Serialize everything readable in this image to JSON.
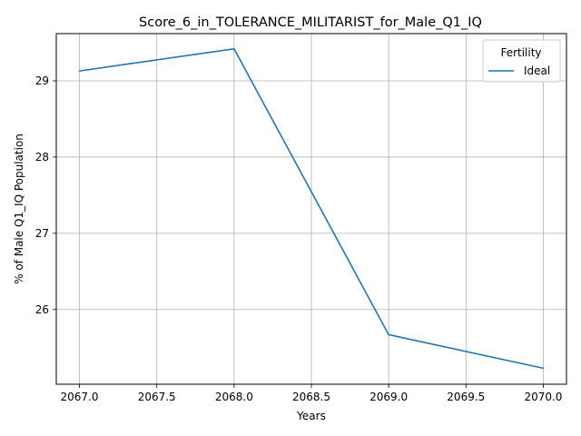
{
  "chart_data": {
    "type": "line",
    "title": "Score_6_in_TOLERANCE_MILITARIST_for_Male_Q1_IQ",
    "xlabel": "Years",
    "ylabel": "% of Male Q1_IQ Population",
    "x": [
      2067,
      2068,
      2069,
      2070
    ],
    "series": [
      {
        "name": "Ideal",
        "color": "#1f77b4",
        "values": [
          29.13,
          29.42,
          25.67,
          25.23
        ]
      }
    ],
    "xlim": [
      2066.85,
      2070.15
    ],
    "ylim": [
      25.02,
      29.62
    ],
    "xticks": [
      2067.0,
      2067.5,
      2068.0,
      2068.5,
      2069.0,
      2069.5,
      2070.0
    ],
    "xtick_labels": [
      "2067.0",
      "2067.5",
      "2068.0",
      "2068.5",
      "2069.0",
      "2069.5",
      "2070.0"
    ],
    "yticks": [
      26,
      27,
      28,
      29
    ],
    "ytick_labels": [
      "26",
      "27",
      "28",
      "29"
    ],
    "grid": true,
    "legend": {
      "title": "Fertility",
      "position": "top-right"
    }
  }
}
